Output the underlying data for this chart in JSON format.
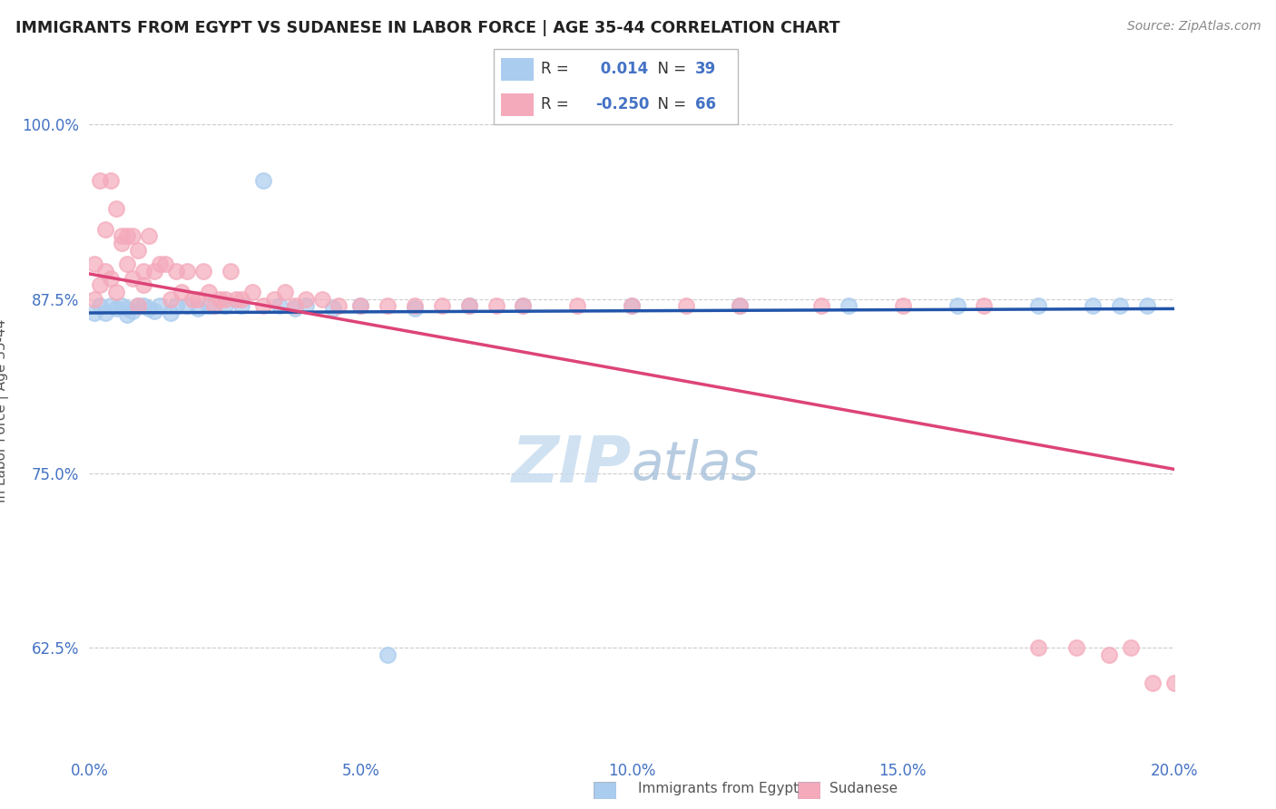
{
  "title": "IMMIGRANTS FROM EGYPT VS SUDANESE IN LABOR FORCE | AGE 35-44 CORRELATION CHART",
  "source": "Source: ZipAtlas.com",
  "ylabel": "In Labor Force | Age 35-44",
  "xlim": [
    0.0,
    0.2
  ],
  "ylim": [
    0.55,
    1.04
  ],
  "yticks": [
    0.625,
    0.75,
    0.875,
    1.0
  ],
  "ytick_labels": [
    "62.5%",
    "75.0%",
    "87.5%",
    "100.0%"
  ],
  "xticks": [
    0.0,
    0.05,
    0.1,
    0.15,
    0.2
  ],
  "xtick_labels": [
    "0.0%",
    "5.0%",
    "10.0%",
    "15.0%",
    "20.0%"
  ],
  "egypt_R": 0.014,
  "egypt_N": 39,
  "sudan_R": -0.25,
  "sudan_N": 66,
  "egypt_color": "#aaccee",
  "sudan_color": "#f4aabb",
  "egypt_line_color": "#2255aa",
  "sudan_line_color": "#dd4477",
  "watermark_zip": "ZIP",
  "watermark_atlas": "atlas",
  "watermark_color_zip": "#c5d8ee",
  "watermark_color_atlas": "#a8c4e0",
  "background_color": "#ffffff",
  "egypt_x": [
    0.001,
    0.002,
    0.003,
    0.004,
    0.005,
    0.006,
    0.007,
    0.007,
    0.008,
    0.009,
    0.01,
    0.011,
    0.012,
    0.013,
    0.015,
    0.016,
    0.018,
    0.02,
    0.022,
    0.025,
    0.028,
    0.032,
    0.035,
    0.038,
    0.04,
    0.045,
    0.05,
    0.055,
    0.06,
    0.07,
    0.08,
    0.1,
    0.12,
    0.14,
    0.16,
    0.175,
    0.185,
    0.19,
    0.195
  ],
  "egypt_y": [
    0.865,
    0.87,
    0.865,
    0.87,
    0.868,
    0.87,
    0.868,
    0.864,
    0.866,
    0.87,
    0.87,
    0.868,
    0.866,
    0.87,
    0.865,
    0.87,
    0.87,
    0.868,
    0.87,
    0.87,
    0.87,
    0.96,
    0.87,
    0.868,
    0.87,
    0.868,
    0.87,
    0.62,
    0.868,
    0.87,
    0.87,
    0.87,
    0.87,
    0.87,
    0.87,
    0.87,
    0.87,
    0.87,
    0.87
  ],
  "sudan_x": [
    0.001,
    0.001,
    0.002,
    0.002,
    0.003,
    0.003,
    0.004,
    0.004,
    0.005,
    0.005,
    0.006,
    0.006,
    0.007,
    0.007,
    0.008,
    0.008,
    0.009,
    0.009,
    0.01,
    0.01,
    0.011,
    0.012,
    0.013,
    0.014,
    0.015,
    0.016,
    0.017,
    0.018,
    0.019,
    0.02,
    0.021,
    0.022,
    0.023,
    0.024,
    0.025,
    0.026,
    0.027,
    0.028,
    0.03,
    0.032,
    0.034,
    0.036,
    0.038,
    0.04,
    0.043,
    0.046,
    0.05,
    0.055,
    0.06,
    0.065,
    0.07,
    0.075,
    0.08,
    0.09,
    0.1,
    0.11,
    0.12,
    0.135,
    0.15,
    0.165,
    0.175,
    0.182,
    0.188,
    0.192,
    0.196,
    0.2
  ],
  "sudan_y": [
    0.9,
    0.875,
    0.96,
    0.885,
    0.925,
    0.895,
    0.96,
    0.89,
    0.94,
    0.88,
    0.92,
    0.915,
    0.9,
    0.92,
    0.92,
    0.89,
    0.91,
    0.87,
    0.885,
    0.895,
    0.92,
    0.895,
    0.9,
    0.9,
    0.875,
    0.895,
    0.88,
    0.895,
    0.875,
    0.875,
    0.895,
    0.88,
    0.87,
    0.875,
    0.875,
    0.895,
    0.875,
    0.875,
    0.88,
    0.87,
    0.875,
    0.88,
    0.87,
    0.875,
    0.875,
    0.87,
    0.87,
    0.87,
    0.87,
    0.87,
    0.87,
    0.87,
    0.87,
    0.87,
    0.87,
    0.87,
    0.87,
    0.87,
    0.87,
    0.87,
    0.625,
    0.625,
    0.62,
    0.625,
    0.6,
    0.6
  ]
}
